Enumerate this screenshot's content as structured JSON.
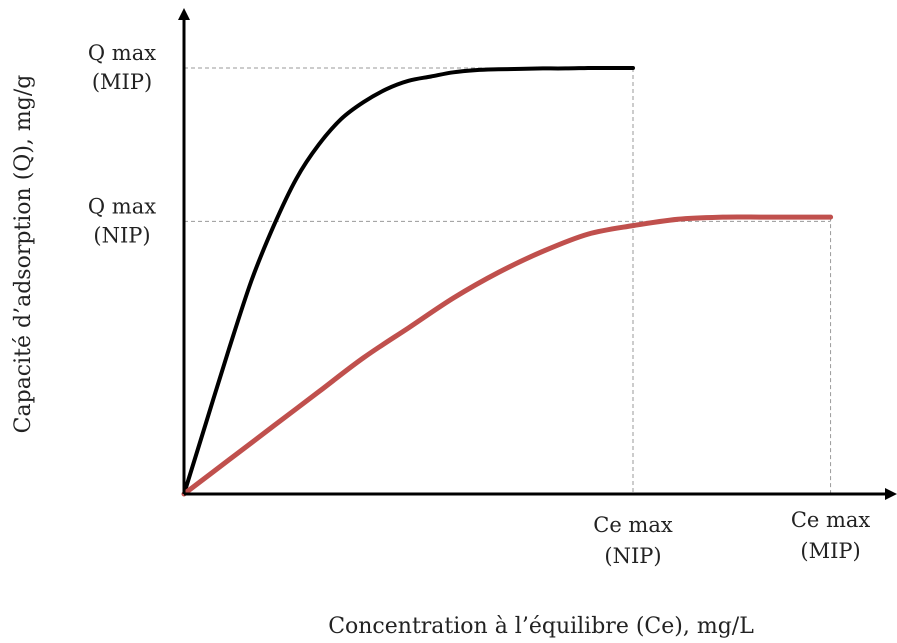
{
  "chart_data": {
    "type": "line",
    "xlabel": "Concentration à l’équilibre (Ce), mg/L",
    "ylabel": "Capacité d’adsorption (Q),  mg/g",
    "xlim": [
      0,
      1.45
    ],
    "ylim": [
      0,
      1.0
    ],
    "grid": false,
    "y_markers": [
      {
        "lines": [
          "Q max",
          "(MIP)"
        ],
        "value": 1.0
      },
      {
        "lines": [
          "Q max",
          "(NIP)"
        ],
        "value": 0.64
      }
    ],
    "x_markers": [
      {
        "lines": [
          "Ce max",
          "(NIP)"
        ],
        "value": 1.0
      },
      {
        "lines": [
          "Ce max",
          "(MIP)"
        ],
        "value": 1.44
      }
    ],
    "series": [
      {
        "color": "#000000",
        "x": [
          0,
          0.05,
          0.1,
          0.15,
          0.2,
          0.25,
          0.3,
          0.35,
          0.4,
          0.45,
          0.5,
          0.55,
          0.6,
          0.65,
          0.7,
          0.75,
          0.8,
          0.85,
          0.9,
          0.95,
          1.0
        ],
        "y": [
          0,
          0.17,
          0.34,
          0.5,
          0.63,
          0.74,
          0.82,
          0.88,
          0.92,
          0.95,
          0.97,
          0.98,
          0.99,
          0.995,
          0.997,
          0.998,
          0.999,
          0.999,
          1.0,
          1.0,
          1.0
        ]
      },
      {
        "color": "#c0504d",
        "x": [
          0,
          0.1,
          0.2,
          0.3,
          0.4,
          0.5,
          0.6,
          0.7,
          0.8,
          0.9,
          1.0,
          1.1,
          1.2,
          1.3,
          1.44
        ],
        "y": [
          0,
          0.08,
          0.16,
          0.24,
          0.32,
          0.39,
          0.46,
          0.52,
          0.57,
          0.61,
          0.63,
          0.645,
          0.65,
          0.65,
          0.65
        ]
      }
    ]
  }
}
